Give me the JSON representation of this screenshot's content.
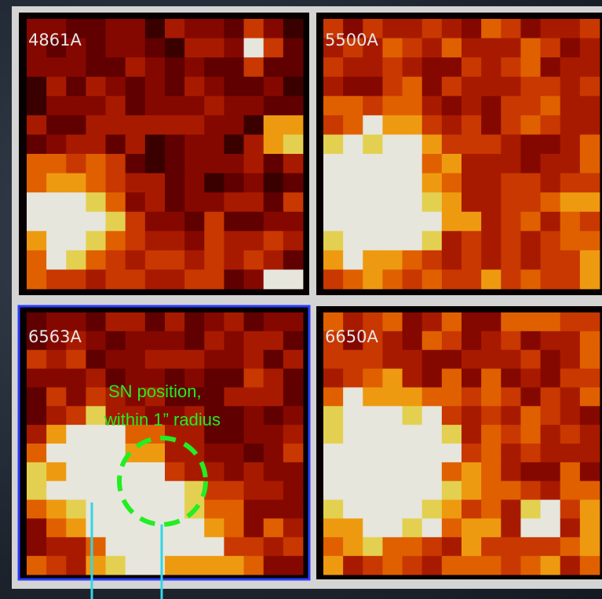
{
  "panels": [
    {
      "label": "4861A"
    },
    {
      "label": "5500A"
    },
    {
      "label": "6563A"
    },
    {
      "label": "6650A"
    }
  ],
  "annotation": {
    "line1": "SN position,",
    "line2": "within 1” radius"
  }
}
